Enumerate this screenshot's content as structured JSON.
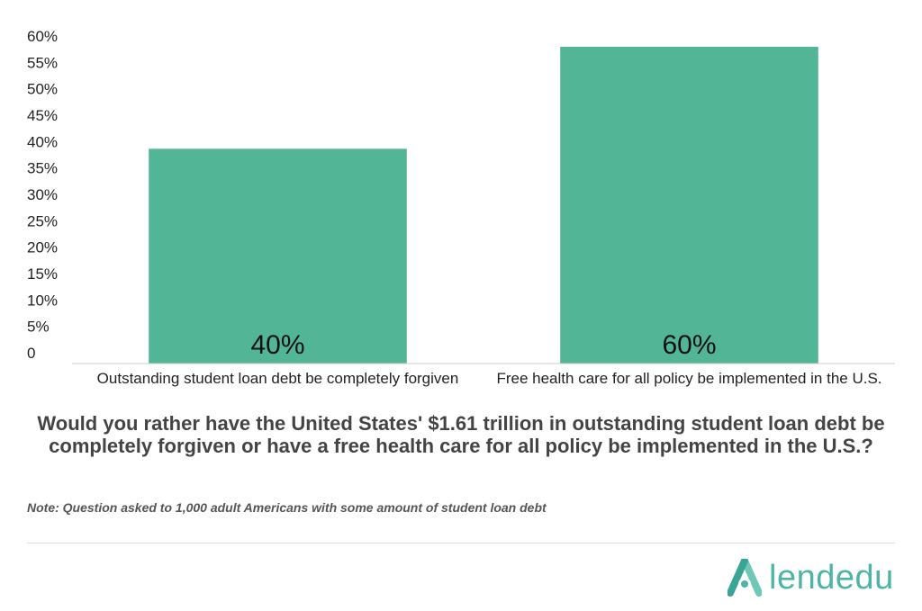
{
  "chart_data": {
    "type": "bar",
    "categories": [
      "Outstanding student loan debt be completely forgiven",
      "Free health care for all policy be implemented in the U.S."
    ],
    "values": [
      40,
      60
    ],
    "data_labels": [
      "40%",
      "60%"
    ],
    "y_ticks": [
      "0",
      "5%",
      "10%",
      "15%",
      "20%",
      "25%",
      "30%",
      "35%",
      "40%",
      "45%",
      "50%",
      "55%",
      "60%"
    ],
    "ylim": [
      0,
      60
    ],
    "grid": false,
    "bar_color": "#52b595",
    "title": "Would you rather have the United States' $1.61 trillion in outstanding student loan debt be completely forgiven or have a free health care for all policy be implemented in the U.S.?"
  },
  "note": "Note: Question asked to 1,000 adult Americans with some amount of student loan debt",
  "logo": {
    "text": "lendedu",
    "icon": "lendedu-logo-icon",
    "color": "#4fb3a6"
  }
}
